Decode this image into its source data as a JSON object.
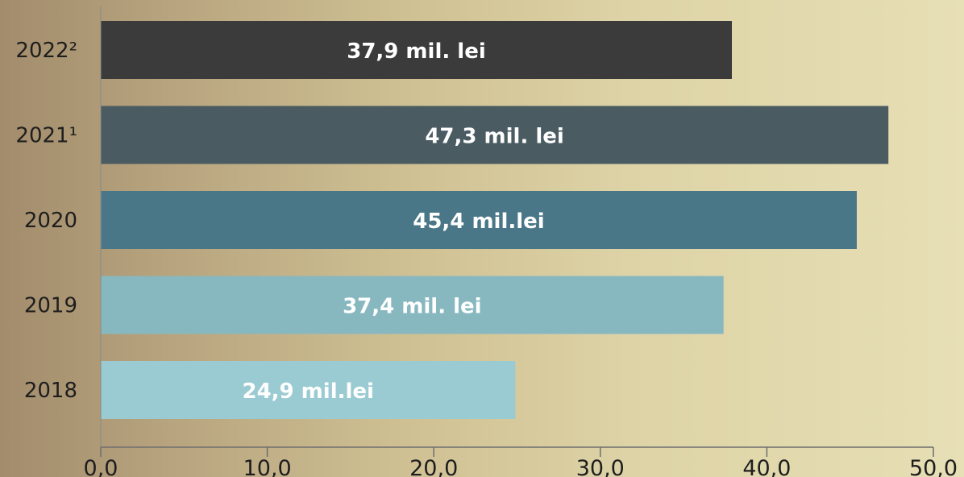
{
  "chart_data": {
    "type": "bar",
    "orientation": "horizontal",
    "categories": [
      "2022²",
      "2021¹",
      "2020",
      "2019",
      "2018"
    ],
    "values": [
      37.9,
      47.3,
      45.4,
      37.4,
      24.9
    ],
    "data_labels": [
      "37,9 mil. lei",
      "47,3 mil. lei",
      "45,4 mil.lei",
      "37,4 mil. lei",
      "24,9 mil.lei"
    ],
    "bar_colors": [
      "#3b3b3b",
      "#4a5b62",
      "#4a7787",
      "#88b8bf",
      "#9bcbd2"
    ],
    "x_ticks": [
      "0,0",
      "10,0",
      "20,0",
      "30,0",
      "40,0",
      "50,0"
    ],
    "xlim": [
      0,
      50
    ],
    "title": "",
    "xlabel": "",
    "ylabel": "",
    "grid": false,
    "legend": "none"
  }
}
